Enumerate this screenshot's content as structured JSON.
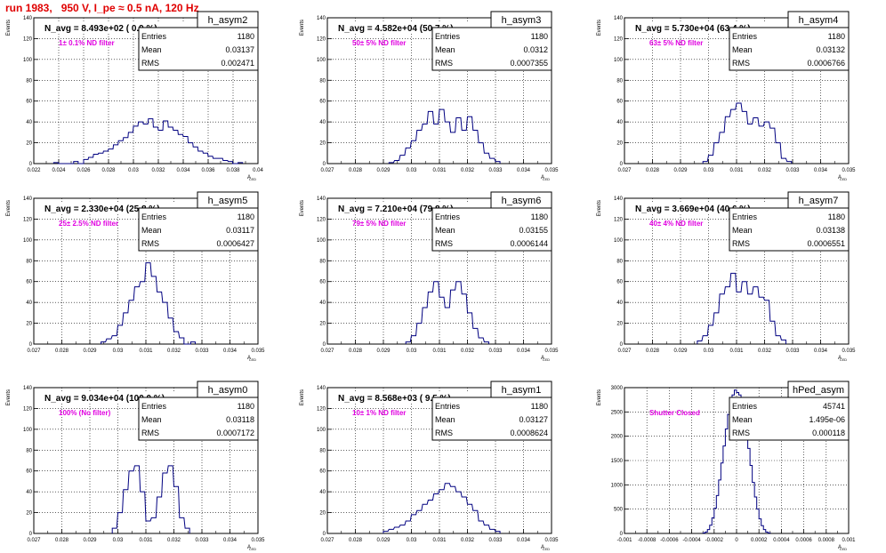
{
  "title": "run 1983,   950 V, I_pe ≈ 0.5 nA, 120 Hz",
  "stats_labels": {
    "entries": "Entries",
    "mean": "Mean",
    "rms": "RMS"
  },
  "colors": {
    "hist": "#000080",
    "title": "#e00000",
    "annotation": "#e000e0"
  },
  "chart_data": [
    {
      "type": "histogram",
      "name": "h_asym2",
      "title": "N_avg = 8.493e+02 ( 0.9 %)",
      "annotation": "1± 0.1% ND filter",
      "stats": {
        "entries": "1180",
        "mean": "0.03137",
        "rms": "0.002471"
      },
      "xlabel": "A_LED",
      "ylabel": "Events",
      "xlim": [
        0.022,
        0.04
      ],
      "ylim": [
        0,
        140
      ],
      "xticks": [
        "0.022",
        "0.024",
        "0.026",
        "0.028",
        "0.03",
        "0.032",
        "0.034",
        "0.036",
        "0.038",
        "0.04"
      ],
      "yticks": [
        "0",
        "20",
        "40",
        "60",
        "80",
        "100",
        "120",
        "140"
      ],
      "bin_width": 0.00036,
      "bins": [
        [
          0.0236,
          1
        ],
        [
          0.0252,
          2
        ],
        [
          0.026,
          4
        ],
        [
          0.0264,
          6
        ],
        [
          0.0268,
          9
        ],
        [
          0.0272,
          10
        ],
        [
          0.0276,
          12
        ],
        [
          0.028,
          14
        ],
        [
          0.0284,
          18
        ],
        [
          0.0288,
          22
        ],
        [
          0.0292,
          25
        ],
        [
          0.0296,
          30
        ],
        [
          0.03,
          36
        ],
        [
          0.0304,
          40
        ],
        [
          0.0308,
          38
        ],
        [
          0.0312,
          43
        ],
        [
          0.0316,
          35
        ],
        [
          0.032,
          32
        ],
        [
          0.0324,
          41
        ],
        [
          0.0328,
          35
        ],
        [
          0.0332,
          32
        ],
        [
          0.0336,
          28
        ],
        [
          0.034,
          26
        ],
        [
          0.0344,
          20
        ],
        [
          0.0348,
          16
        ],
        [
          0.0352,
          12
        ],
        [
          0.0356,
          10
        ],
        [
          0.036,
          7
        ],
        [
          0.0364,
          5
        ],
        [
          0.0368,
          5
        ],
        [
          0.0372,
          3
        ],
        [
          0.0376,
          2
        ],
        [
          0.0384,
          1
        ]
      ]
    },
    {
      "type": "histogram",
      "name": "h_asym3",
      "title": "N_avg = 4.582e+04 (50.7 %)",
      "annotation": "50± 5% ND filter",
      "stats": {
        "entries": "1180",
        "mean": "0.0312",
        "rms": "0.0007355"
      },
      "xlabel": "A_LED",
      "ylabel": "Events",
      "xlim": [
        0.027,
        0.035
      ],
      "ylim": [
        0,
        140
      ],
      "xticks": [
        "0.027",
        "0.028",
        "0.029",
        "0.03",
        "0.031",
        "0.032",
        "0.033",
        "0.034",
        "0.035"
      ],
      "yticks": [
        "0",
        "20",
        "40",
        "60",
        "80",
        "100",
        "120",
        "140"
      ],
      "bin_width": 0.00016,
      "bins": [
        [
          0.0292,
          1
        ],
        [
          0.0294,
          3
        ],
        [
          0.0296,
          8
        ],
        [
          0.0298,
          15
        ],
        [
          0.03,
          22
        ],
        [
          0.0302,
          32
        ],
        [
          0.0304,
          38
        ],
        [
          0.0306,
          50
        ],
        [
          0.0308,
          38
        ],
        [
          0.031,
          52
        ],
        [
          0.0312,
          40
        ],
        [
          0.0314,
          30
        ],
        [
          0.0316,
          44
        ],
        [
          0.0318,
          32
        ],
        [
          0.032,
          45
        ],
        [
          0.0322,
          32
        ],
        [
          0.0324,
          20
        ],
        [
          0.0326,
          10
        ],
        [
          0.0328,
          5
        ],
        [
          0.033,
          2
        ]
      ]
    },
    {
      "type": "histogram",
      "name": "h_asym4",
      "title": "N_avg = 5.730e+04 (63.4 %)",
      "annotation": "63± 5% ND filter",
      "stats": {
        "entries": "1180",
        "mean": "0.03132",
        "rms": "0.0006766"
      },
      "xlabel": "A_LED",
      "ylabel": "Events",
      "xlim": [
        0.027,
        0.035
      ],
      "ylim": [
        0,
        140
      ],
      "xticks": [
        "0.027",
        "0.028",
        "0.029",
        "0.03",
        "0.031",
        "0.032",
        "0.033",
        "0.034",
        "0.035"
      ],
      "yticks": [
        "0",
        "20",
        "40",
        "60",
        "80",
        "100",
        "120",
        "140"
      ],
      "bin_width": 0.00016,
      "bins": [
        [
          0.0298,
          2
        ],
        [
          0.03,
          8
        ],
        [
          0.0302,
          20
        ],
        [
          0.0304,
          30
        ],
        [
          0.0306,
          45
        ],
        [
          0.0308,
          52
        ],
        [
          0.031,
          58
        ],
        [
          0.0312,
          50
        ],
        [
          0.0314,
          38
        ],
        [
          0.0316,
          44
        ],
        [
          0.0318,
          36
        ],
        [
          0.032,
          40
        ],
        [
          0.0322,
          34
        ],
        [
          0.0324,
          20
        ],
        [
          0.0326,
          5
        ],
        [
          0.0328,
          2
        ]
      ]
    },
    {
      "type": "histogram",
      "name": "h_asym5",
      "title": "N_avg = 2.330e+04 (25.8 %)",
      "annotation": "25± 2.5% ND filter",
      "stats": {
        "entries": "1180",
        "mean": "0.03117",
        "rms": "0.0006427"
      },
      "xlabel": "A_LED",
      "ylabel": "Events",
      "xlim": [
        0.027,
        0.035
      ],
      "ylim": [
        0,
        140
      ],
      "xticks": [
        "0.027",
        "0.028",
        "0.029",
        "0.03",
        "0.031",
        "0.032",
        "0.033",
        "0.034",
        "0.035"
      ],
      "yticks": [
        "0",
        "20",
        "40",
        "60",
        "80",
        "100",
        "120",
        "140"
      ],
      "bin_width": 0.00016,
      "bins": [
        [
          0.0294,
          2
        ],
        [
          0.0296,
          5
        ],
        [
          0.0298,
          8
        ],
        [
          0.03,
          18
        ],
        [
          0.0302,
          30
        ],
        [
          0.0304,
          42
        ],
        [
          0.0306,
          55
        ],
        [
          0.0308,
          60
        ],
        [
          0.031,
          78
        ],
        [
          0.0312,
          65
        ],
        [
          0.0314,
          50
        ],
        [
          0.0316,
          40
        ],
        [
          0.0318,
          25
        ],
        [
          0.032,
          12
        ],
        [
          0.0322,
          6
        ],
        [
          0.0326,
          2
        ]
      ]
    },
    {
      "type": "histogram",
      "name": "h_asym6",
      "title": "N_avg = 7.210e+04 (79.8 %)",
      "annotation": "79± 5% ND filter",
      "stats": {
        "entries": "1180",
        "mean": "0.03155",
        "rms": "0.0006144"
      },
      "xlabel": "A_LED",
      "ylabel": "Events",
      "xlim": [
        0.027,
        0.035
      ],
      "ylim": [
        0,
        140
      ],
      "xticks": [
        "0.027",
        "0.028",
        "0.029",
        "0.03",
        "0.031",
        "0.032",
        "0.033",
        "0.034",
        "0.035"
      ],
      "yticks": [
        "0",
        "20",
        "40",
        "60",
        "80",
        "100",
        "120",
        "140"
      ],
      "bin_width": 0.00016,
      "bins": [
        [
          0.0298,
          2
        ],
        [
          0.03,
          8
        ],
        [
          0.0302,
          20
        ],
        [
          0.0304,
          35
        ],
        [
          0.0306,
          50
        ],
        [
          0.0308,
          60
        ],
        [
          0.031,
          45
        ],
        [
          0.0312,
          35
        ],
        [
          0.0314,
          52
        ],
        [
          0.0316,
          60
        ],
        [
          0.0318,
          48
        ],
        [
          0.032,
          30
        ],
        [
          0.0322,
          15
        ],
        [
          0.0324,
          6
        ],
        [
          0.0326,
          2
        ]
      ]
    },
    {
      "type": "histogram",
      "name": "h_asym7",
      "title": "N_avg = 3.669e+04 (40.6 %)",
      "annotation": "40± 4% ND filter",
      "stats": {
        "entries": "1180",
        "mean": "0.03138",
        "rms": "0.0006551"
      },
      "xlabel": "A_LED",
      "ylabel": "Events",
      "xlim": [
        0.027,
        0.035
      ],
      "ylim": [
        0,
        140
      ],
      "xticks": [
        "0.027",
        "0.028",
        "0.029",
        "0.03",
        "0.031",
        "0.032",
        "0.033",
        "0.034",
        "0.035"
      ],
      "yticks": [
        "0",
        "20",
        "40",
        "60",
        "80",
        "100",
        "120",
        "140"
      ],
      "bin_width": 0.00016,
      "bins": [
        [
          0.0296,
          3
        ],
        [
          0.0298,
          8
        ],
        [
          0.03,
          18
        ],
        [
          0.0302,
          30
        ],
        [
          0.0304,
          48
        ],
        [
          0.0306,
          55
        ],
        [
          0.0308,
          68
        ],
        [
          0.031,
          50
        ],
        [
          0.0312,
          60
        ],
        [
          0.0314,
          48
        ],
        [
          0.0316,
          55
        ],
        [
          0.0318,
          45
        ],
        [
          0.032,
          42
        ],
        [
          0.0322,
          22
        ],
        [
          0.0324,
          8
        ],
        [
          0.0326,
          4
        ]
      ]
    },
    {
      "type": "histogram",
      "name": "h_asym0",
      "title": "N_avg = 9.034e+04 (100.0 %)",
      "annotation": "100% (No filter)",
      "stats": {
        "entries": "1180",
        "mean": "0.03118",
        "rms": "0.0007172"
      },
      "xlabel": "A_LED",
      "ylabel": "Events",
      "xlim": [
        0.027,
        0.035
      ],
      "ylim": [
        0,
        140
      ],
      "xticks": [
        "0.027",
        "0.028",
        "0.029",
        "0.03",
        "0.031",
        "0.032",
        "0.033",
        "0.034",
        "0.035"
      ],
      "yticks": [
        "0",
        "20",
        "40",
        "60",
        "80",
        "100",
        "120",
        "140"
      ],
      "bin_width": 0.00016,
      "bins": [
        [
          0.0298,
          5
        ],
        [
          0.03,
          20
        ],
        [
          0.0302,
          42
        ],
        [
          0.0304,
          60
        ],
        [
          0.0306,
          65
        ],
        [
          0.0308,
          40
        ],
        [
          0.031,
          12
        ],
        [
          0.0312,
          15
        ],
        [
          0.0314,
          35
        ],
        [
          0.0316,
          58
        ],
        [
          0.0318,
          65
        ],
        [
          0.032,
          45
        ],
        [
          0.0322,
          15
        ],
        [
          0.0324,
          5
        ]
      ]
    },
    {
      "type": "histogram",
      "name": "h_asym1",
      "title": "N_avg = 8.568e+03 ( 9.5 %)",
      "annotation": "10± 1% ND filter",
      "stats": {
        "entries": "1180",
        "mean": "0.03127",
        "rms": "0.0008624"
      },
      "xlabel": "A_LED",
      "ylabel": "Events",
      "xlim": [
        0.027,
        0.035
      ],
      "ylim": [
        0,
        140
      ],
      "xticks": [
        "0.027",
        "0.028",
        "0.029",
        "0.03",
        "0.031",
        "0.032",
        "0.033",
        "0.034",
        "0.035"
      ],
      "yticks": [
        "0",
        "20",
        "40",
        "60",
        "80",
        "100",
        "120",
        "140"
      ],
      "bin_width": 0.00016,
      "bins": [
        [
          0.029,
          2
        ],
        [
          0.0292,
          4
        ],
        [
          0.0294,
          6
        ],
        [
          0.0296,
          8
        ],
        [
          0.0298,
          12
        ],
        [
          0.03,
          18
        ],
        [
          0.0302,
          22
        ],
        [
          0.0304,
          28
        ],
        [
          0.0306,
          32
        ],
        [
          0.0308,
          38
        ],
        [
          0.031,
          42
        ],
        [
          0.0312,
          48
        ],
        [
          0.0314,
          45
        ],
        [
          0.0316,
          40
        ],
        [
          0.0318,
          35
        ],
        [
          0.032,
          28
        ],
        [
          0.0322,
          22
        ],
        [
          0.0324,
          12
        ],
        [
          0.0326,
          8
        ],
        [
          0.0328,
          4
        ],
        [
          0.033,
          2
        ]
      ]
    },
    {
      "type": "histogram",
      "name": "hPed_asym",
      "title": "",
      "annotation": "Shutter Closed",
      "stats": {
        "entries": "45741",
        "mean": "1.495e-06",
        "rms": "0.000118"
      },
      "xlabel": "A_LED",
      "ylabel": "Events",
      "xlim": [
        -0.001,
        0.001
      ],
      "ylim": [
        0,
        3000
      ],
      "xticks": [
        "-0.001",
        "-0.0008",
        "-0.0006",
        "-0.0004",
        "-0.0002",
        "0",
        "0.0002",
        "0.0004",
        "0.0006",
        "0.0008",
        "0.001"
      ],
      "yticks": [
        "0",
        "500",
        "1000",
        "1500",
        "2000",
        "2500",
        "3000"
      ],
      "bin_width": 2e-05,
      "bins": [
        [
          -0.0003,
          10
        ],
        [
          -0.00028,
          30
        ],
        [
          -0.00026,
          80
        ],
        [
          -0.00024,
          170
        ],
        [
          -0.00022,
          320
        ],
        [
          -0.0002,
          520
        ],
        [
          -0.00018,
          780
        ],
        [
          -0.00016,
          1100
        ],
        [
          -0.00014,
          1450
        ],
        [
          -0.00012,
          1800
        ],
        [
          -0.0001,
          2150
        ],
        [
          -8e-05,
          2450
        ],
        [
          -6e-05,
          2700
        ],
        [
          -4e-05,
          2850
        ],
        [
          -2e-05,
          2950
        ],
        [
          0,
          2900
        ],
        [
          2e-05,
          2850
        ],
        [
          4e-05,
          2700
        ],
        [
          6e-05,
          2400
        ],
        [
          8e-05,
          2100
        ],
        [
          0.0001,
          1750
        ],
        [
          0.00012,
          1400
        ],
        [
          0.00014,
          1050
        ],
        [
          0.00016,
          750
        ],
        [
          0.00018,
          500
        ],
        [
          0.0002,
          300
        ],
        [
          0.00022,
          160
        ],
        [
          0.00024,
          80
        ],
        [
          0.00026,
          30
        ],
        [
          0.00028,
          10
        ]
      ]
    }
  ]
}
